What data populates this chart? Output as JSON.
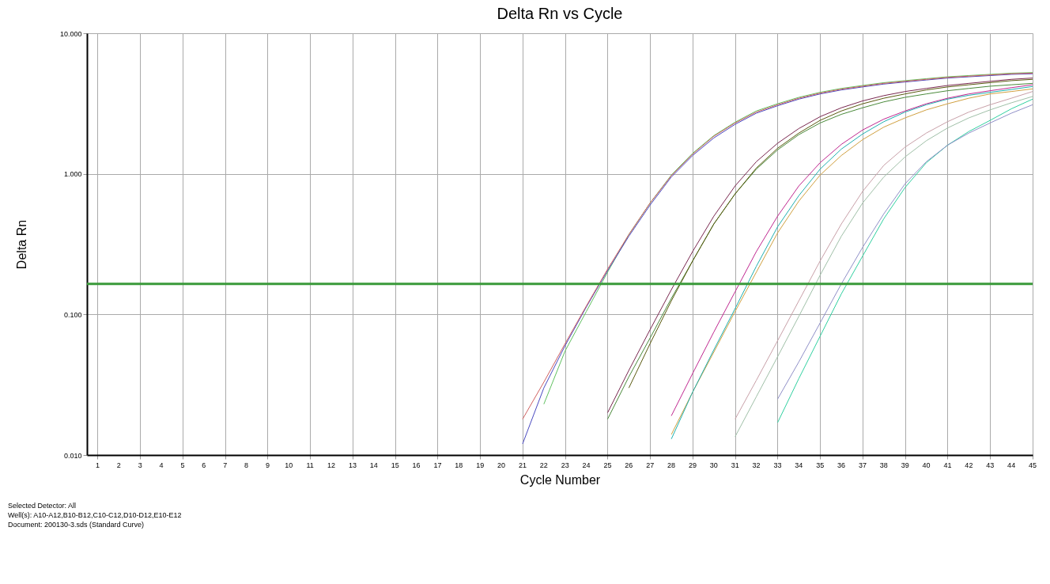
{
  "chart_data": {
    "type": "line",
    "title": "Delta Rn vs Cycle",
    "xlabel": "Cycle Number",
    "ylabel": "Delta Rn",
    "log": "y",
    "grid": true,
    "legend": false,
    "marker": "none",
    "line_style": "solid",
    "xlim": [
      0.5,
      45
    ],
    "xticks": [
      1,
      2,
      3,
      4,
      5,
      6,
      7,
      8,
      9,
      10,
      11,
      12,
      13,
      14,
      15,
      16,
      17,
      18,
      19,
      20,
      21,
      22,
      23,
      24,
      25,
      26,
      27,
      28,
      29,
      30,
      31,
      32,
      33,
      34,
      35,
      36,
      37,
      38,
      39,
      40,
      41,
      42,
      43,
      44,
      45
    ],
    "ylim": [
      0.01,
      10
    ],
    "yticks": [
      {
        "value": 0.01,
        "label": "0.010"
      },
      {
        "value": 0.1,
        "label": "0.100"
      },
      {
        "value": 1,
        "label": "1.000"
      },
      {
        "value": 10,
        "label": "10.000"
      }
    ],
    "ref_lines": [
      {
        "axis": "y",
        "value": 0.165,
        "label": null,
        "color": "#3a9a3a"
      }
    ],
    "series": [
      {
        "color": "#d06060",
        "x": [
          21,
          22,
          23,
          24,
          25,
          26,
          27,
          28,
          29,
          30,
          31,
          32,
          33,
          34,
          35,
          36,
          37,
          38,
          39,
          40,
          41,
          42,
          43,
          44,
          45
        ],
        "values": [
          0.018,
          0.033,
          0.062,
          0.115,
          0.21,
          0.37,
          0.62,
          0.97,
          1.38,
          1.85,
          2.3,
          2.75,
          3.1,
          3.45,
          3.75,
          4.0,
          4.2,
          4.4,
          4.55,
          4.7,
          4.85,
          4.95,
          5.05,
          5.15,
          5.2
        ]
      },
      {
        "color": "#4848c0",
        "x": [
          21,
          22,
          23,
          24,
          25,
          26,
          27,
          28,
          29,
          30,
          31,
          32,
          33,
          34,
          35,
          36,
          37,
          38,
          39,
          40,
          41,
          42,
          43,
          44,
          45
        ],
        "values": [
          0.012,
          0.03,
          0.06,
          0.113,
          0.205,
          0.36,
          0.6,
          0.95,
          1.35,
          1.8,
          2.25,
          2.7,
          3.05,
          3.4,
          3.7,
          3.95,
          4.15,
          4.35,
          4.5,
          4.65,
          4.8,
          4.9,
          5.0,
          5.1,
          5.15
        ]
      },
      {
        "color": "#60c060",
        "x": [
          22,
          23,
          24,
          25,
          26,
          27,
          28,
          29,
          30,
          31,
          32,
          33,
          34,
          35,
          36,
          37,
          38,
          39,
          40,
          41,
          42,
          43,
          44,
          45
        ],
        "values": [
          0.023,
          0.055,
          0.105,
          0.2,
          0.37,
          0.62,
          0.98,
          1.4,
          1.87,
          2.33,
          2.8,
          3.15,
          3.5,
          3.8,
          4.05,
          4.25,
          4.45,
          4.6,
          4.75,
          4.9,
          5.0,
          5.1,
          5.2,
          5.25
        ]
      },
      {
        "color": "#7a2850",
        "x": [
          25,
          26,
          27,
          28,
          29,
          30,
          31,
          32,
          33,
          34,
          35,
          36,
          37,
          38,
          39,
          40,
          41,
          42,
          43,
          44,
          45
        ],
        "values": [
          0.02,
          0.04,
          0.078,
          0.15,
          0.28,
          0.5,
          0.82,
          1.22,
          1.65,
          2.1,
          2.55,
          2.95,
          3.3,
          3.6,
          3.85,
          4.05,
          4.25,
          4.4,
          4.55,
          4.7,
          4.8
        ]
      },
      {
        "color": "#5a5a10",
        "x": [
          26,
          27,
          28,
          29,
          30,
          31,
          32,
          33,
          34,
          35,
          36,
          37,
          38,
          39,
          40,
          41,
          42,
          43,
          44,
          45
        ],
        "values": [
          0.03,
          0.062,
          0.125,
          0.24,
          0.44,
          0.72,
          1.1,
          1.52,
          1.95,
          2.4,
          2.8,
          3.15,
          3.45,
          3.7,
          3.95,
          4.15,
          4.3,
          4.45,
          4.6,
          4.7
        ]
      },
      {
        "color": "#4a8a3a",
        "x": [
          25,
          26,
          27,
          28,
          29,
          30,
          31,
          32,
          33,
          34,
          35,
          36,
          37,
          38,
          39,
          40,
          41,
          42,
          43,
          44,
          45
        ],
        "values": [
          0.018,
          0.036,
          0.068,
          0.13,
          0.24,
          0.44,
          0.72,
          1.08,
          1.48,
          1.9,
          2.3,
          2.65,
          2.95,
          3.25,
          3.5,
          3.7,
          3.9,
          4.05,
          4.2,
          4.3,
          4.4
        ]
      },
      {
        "color": "#c02890",
        "x": [
          28,
          29,
          30,
          31,
          32,
          33,
          34,
          35,
          36,
          37,
          38,
          39,
          40,
          41,
          42,
          43,
          44,
          45
        ],
        "values": [
          0.019,
          0.038,
          0.075,
          0.145,
          0.28,
          0.5,
          0.82,
          1.2,
          1.62,
          2.05,
          2.45,
          2.8,
          3.15,
          3.45,
          3.7,
          3.9,
          4.1,
          4.3
        ]
      },
      {
        "color": "#20b0b0",
        "x": [
          28,
          29,
          30,
          31,
          32,
          33,
          34,
          35,
          36,
          37,
          38,
          39,
          40,
          41,
          42,
          43,
          44,
          45
        ],
        "values": [
          0.013,
          0.028,
          0.056,
          0.11,
          0.22,
          0.42,
          0.7,
          1.08,
          1.5,
          1.92,
          2.35,
          2.75,
          3.1,
          3.4,
          3.62,
          3.8,
          3.98,
          4.18
        ]
      },
      {
        "color": "#d0a040",
        "x": [
          28,
          29,
          30,
          31,
          32,
          33,
          34,
          35,
          36,
          37,
          38,
          39,
          40,
          41,
          42,
          43,
          44,
          45
        ],
        "values": [
          0.014,
          0.028,
          0.054,
          0.105,
          0.2,
          0.38,
          0.64,
          0.98,
          1.35,
          1.75,
          2.15,
          2.5,
          2.85,
          3.15,
          3.45,
          3.7,
          3.85,
          4.02
        ]
      },
      {
        "color": "#c8a0a8",
        "x": [
          31,
          32,
          33,
          34,
          35,
          36,
          37,
          38,
          39,
          40,
          41,
          42,
          43,
          44,
          45
        ],
        "values": [
          0.018,
          0.034,
          0.065,
          0.125,
          0.24,
          0.44,
          0.75,
          1.15,
          1.55,
          1.95,
          2.35,
          2.75,
          3.1,
          3.45,
          3.85
        ]
      },
      {
        "color": "#a0c0a8",
        "x": [
          31,
          32,
          33,
          34,
          35,
          36,
          37,
          38,
          39,
          40,
          41,
          42,
          43,
          44,
          45
        ],
        "values": [
          0.0135,
          0.026,
          0.05,
          0.097,
          0.19,
          0.36,
          0.62,
          0.95,
          1.32,
          1.72,
          2.12,
          2.5,
          2.85,
          3.2,
          3.55
        ]
      },
      {
        "color": "#9090c8",
        "x": [
          33,
          34,
          35,
          36,
          37,
          38,
          39,
          40,
          41,
          42,
          43,
          44,
          45
        ],
        "values": [
          0.025,
          0.046,
          0.087,
          0.165,
          0.3,
          0.52,
          0.85,
          1.22,
          1.6,
          1.95,
          2.3,
          2.7,
          3.1
        ]
      },
      {
        "color": "#30d0a0",
        "x": [
          33,
          34,
          35,
          36,
          37,
          38,
          39,
          40,
          41,
          42,
          43,
          44,
          45
        ],
        "values": [
          0.017,
          0.035,
          0.07,
          0.14,
          0.26,
          0.48,
          0.8,
          1.2,
          1.6,
          2.0,
          2.4,
          2.9,
          3.4
        ]
      }
    ],
    "annotations": [
      "Selected Detector: All",
      "Well(s): A10-A12,B10-B12,C10-C12,D10-D12,E10-E12",
      "Document: 200130-3.sds (Standard Curve)"
    ]
  }
}
